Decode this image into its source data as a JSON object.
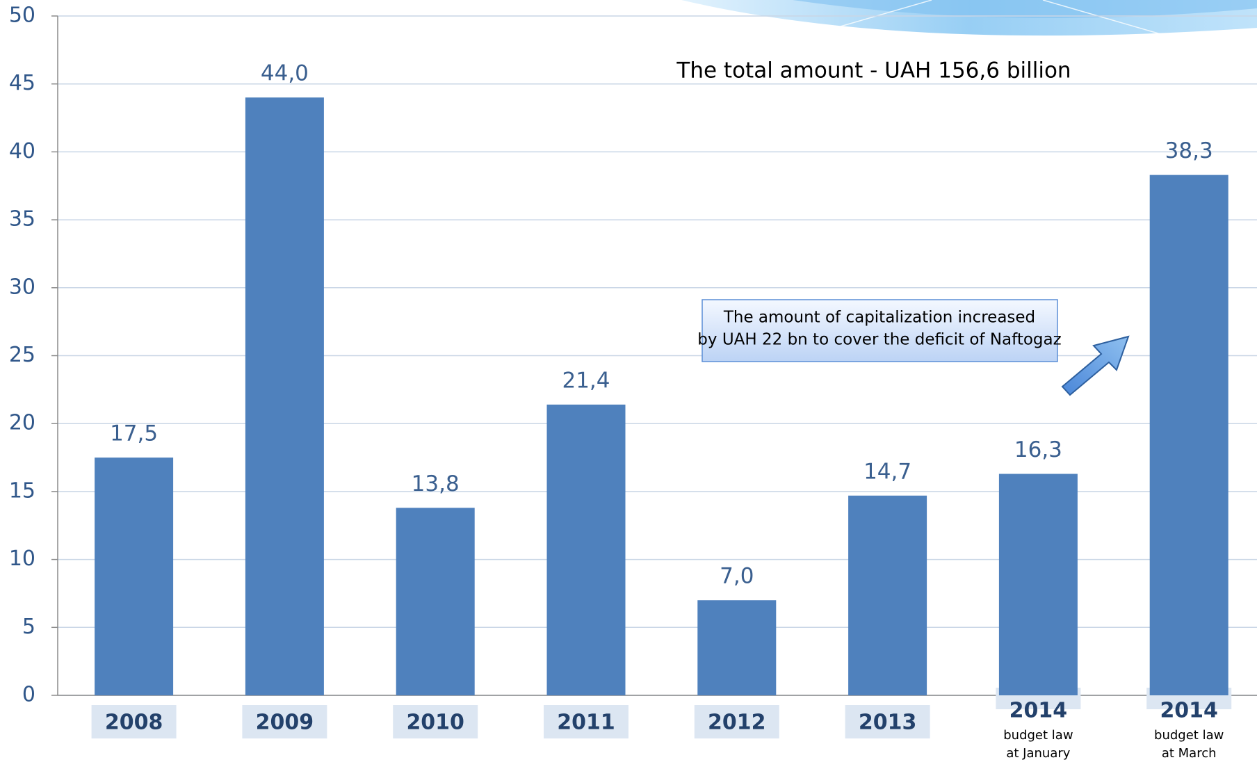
{
  "chart_data": {
    "type": "bar",
    "title": "The total amount - UAH 156,6 billion",
    "annotation": [
      "The amount of capitalization increased",
      "by UAH 22 bn to cover the deficit of Naftogaz"
    ],
    "categories": [
      "2008",
      "2009",
      "2010",
      "2011",
      "2012",
      "2013",
      "2014",
      "2014"
    ],
    "category_notes": {
      "6": [
        "budget law",
        "at January"
      ],
      "7": [
        "budget law",
        "at March"
      ]
    },
    "values": [
      17.5,
      44.0,
      13.8,
      21.4,
      7.0,
      14.7,
      16.3,
      38.3
    ],
    "value_labels": [
      "17,5",
      "44,0",
      "13,8",
      "21,4",
      "7,0",
      "14,7",
      "16,3",
      "38,3"
    ],
    "color": "#4f81bd",
    "ylim": [
      0,
      50
    ],
    "yticks": [
      0,
      5,
      10,
      15,
      20,
      25,
      30,
      35,
      40,
      45,
      50
    ],
    "grid": true
  }
}
